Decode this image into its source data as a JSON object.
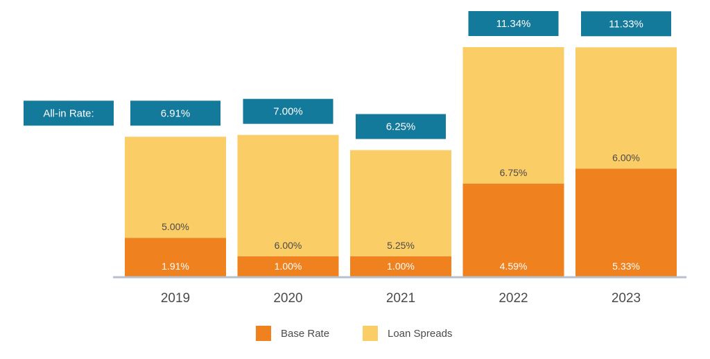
{
  "chart_data": {
    "type": "bar",
    "stacked": true,
    "categories": [
      "2019",
      "2020",
      "2021",
      "2022",
      "2023"
    ],
    "series": [
      {
        "name": "Base Rate",
        "values": [
          1.91,
          1.0,
          1.0,
          4.59,
          5.33
        ],
        "labels": [
          "1.91%",
          "1.00%",
          "1.00%",
          "4.59%",
          "5.33%"
        ]
      },
      {
        "name": "Loan Spreads",
        "values": [
          5.0,
          6.0,
          5.25,
          6.75,
          6.0
        ],
        "labels": [
          "5.00%",
          "6.00%",
          "5.25%",
          "6.75%",
          "6.00%"
        ]
      }
    ],
    "totals_label": "All-in Rate:",
    "totals": [
      6.91,
      7.0,
      6.25,
      11.34,
      11.33
    ],
    "total_labels": [
      "6.91%",
      "7.00%",
      "6.25%",
      "11.34%",
      "11.33%"
    ],
    "ylim": [
      0,
      11.34
    ],
    "grid": false,
    "legend_position": "bottom-center"
  },
  "colors": {
    "base_rate": "#F0811F",
    "loan_spreads": "#FBCD66",
    "total_box": "#137A9B",
    "axis": "#B8C0CC",
    "text": "#4A4A4A"
  }
}
